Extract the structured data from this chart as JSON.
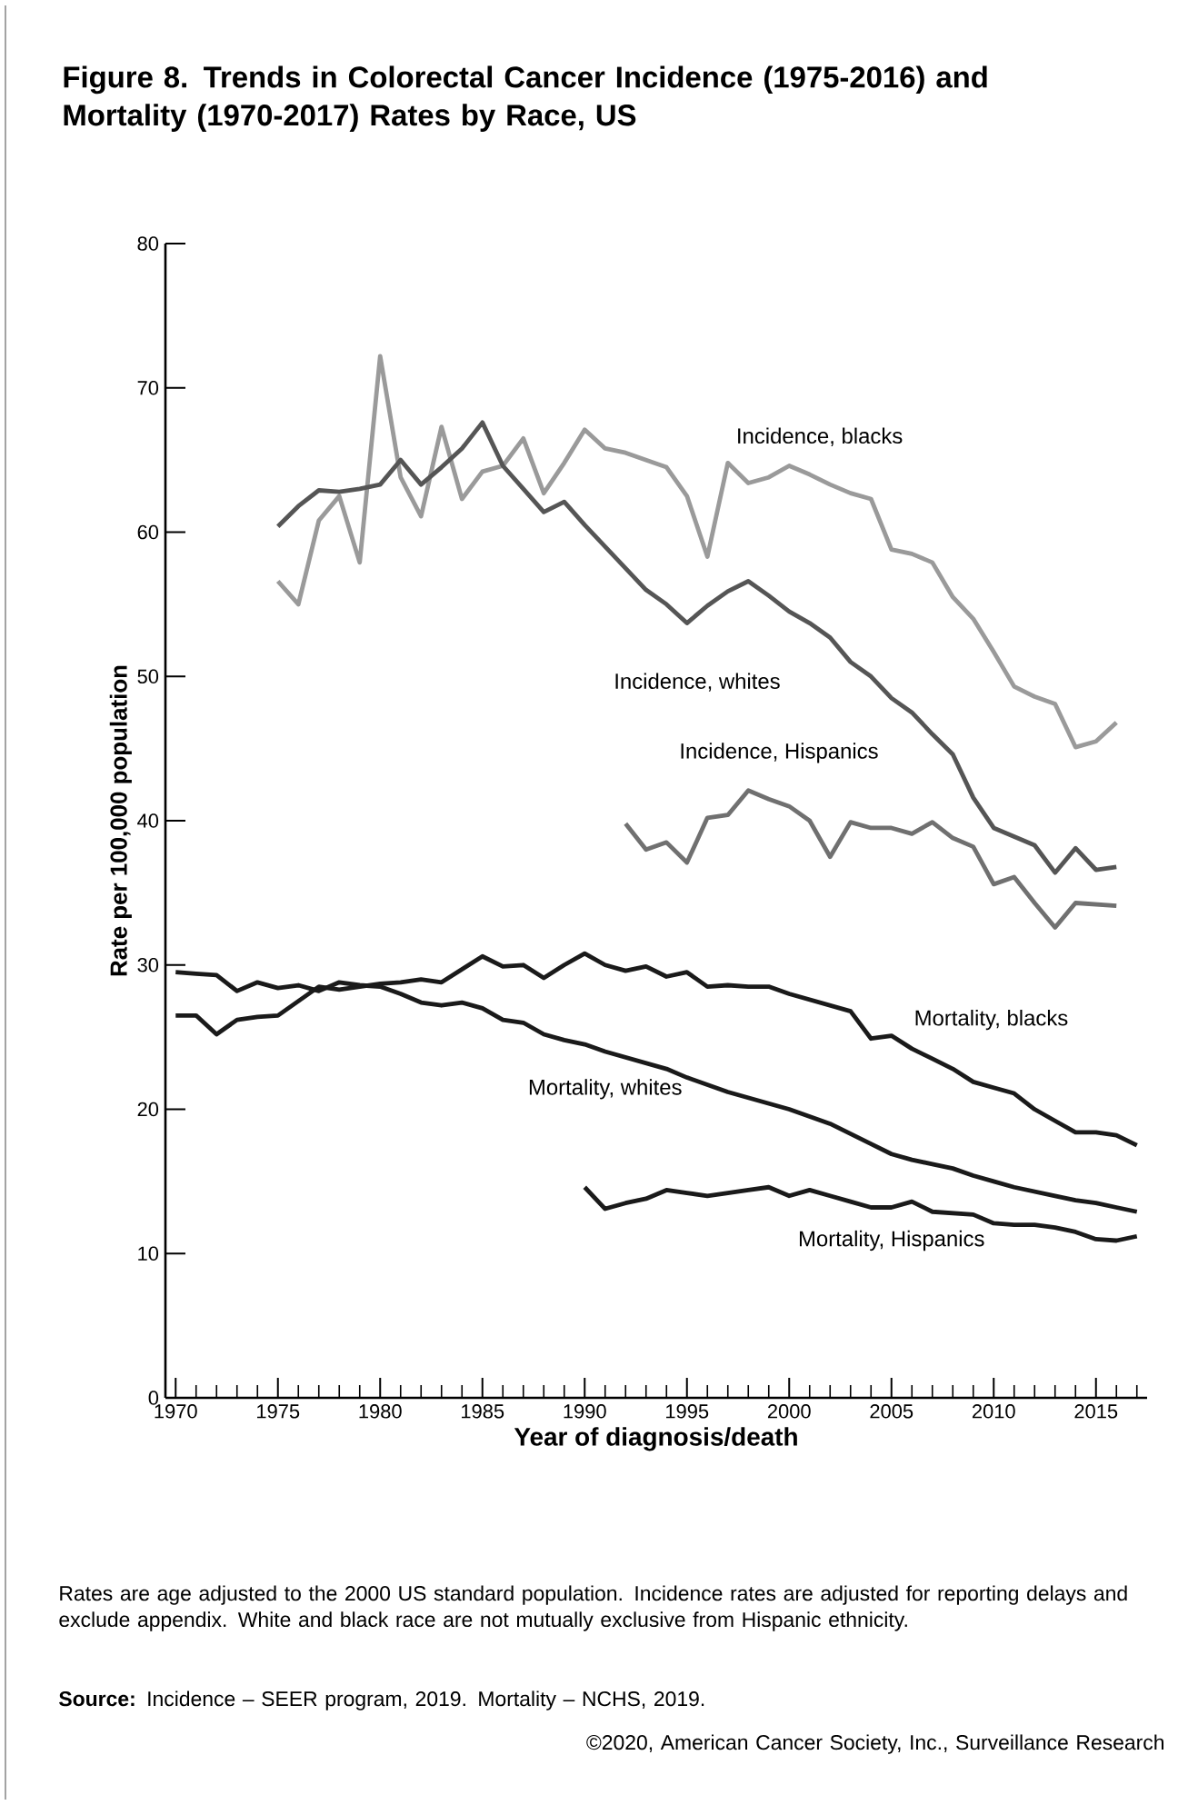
{
  "chart_data": {
    "type": "line",
    "title": "Figure 8. Trends in Colorectal Cancer Incidence (1975-2016) and Mortality (1970-2017) Rates by Race, US",
    "xlabel": "Year of diagnosis/death",
    "ylabel": "Rate per 100,000 population",
    "xlim": [
      1969.5,
      2017.5
    ],
    "ylim": [
      0,
      80
    ],
    "yticks": [
      0,
      10,
      20,
      30,
      40,
      50,
      60,
      70,
      80
    ],
    "xticks": [
      1970,
      {
        "value": 1971,
        "label": null
      },
      {
        "value": 1972,
        "label": null
      },
      {
        "value": 1973,
        "label": null
      },
      {
        "value": 1974,
        "label": null
      },
      1975,
      {
        "value": 1976,
        "label": null
      },
      {
        "value": 1977,
        "label": null
      },
      {
        "value": 1978,
        "label": null
      },
      {
        "value": 1979,
        "label": null
      },
      1980,
      {
        "value": 1981,
        "label": null
      },
      {
        "value": 1982,
        "label": null
      },
      {
        "value": 1983,
        "label": null
      },
      {
        "value": 1984,
        "label": null
      },
      1985,
      {
        "value": 1986,
        "label": null
      },
      {
        "value": 1987,
        "label": null
      },
      {
        "value": 1988,
        "label": null
      },
      {
        "value": 1989,
        "label": null
      },
      1990,
      {
        "value": 1991,
        "label": null
      },
      {
        "value": 1992,
        "label": null
      },
      {
        "value": 1993,
        "label": null
      },
      {
        "value": 1994,
        "label": null
      },
      1995,
      {
        "value": 1996,
        "label": null
      },
      {
        "value": 1997,
        "label": null
      },
      {
        "value": 1998,
        "label": null
      },
      {
        "value": 1999,
        "label": null
      },
      2000,
      {
        "value": 2001,
        "label": null
      },
      {
        "value": 2002,
        "label": null
      },
      {
        "value": 2003,
        "label": null
      },
      {
        "value": 2004,
        "label": null
      },
      2005,
      {
        "value": 2006,
        "label": null
      },
      {
        "value": 2007,
        "label": null
      },
      {
        "value": 2008,
        "label": null
      },
      {
        "value": 2009,
        "label": null
      },
      2010,
      {
        "value": 2011,
        "label": null
      },
      {
        "value": 2012,
        "label": null
      },
      {
        "value": 2013,
        "label": null
      },
      {
        "value": 2014,
        "label": null
      },
      2015,
      {
        "value": 2016,
        "label": null
      },
      {
        "value": 2017,
        "label": null
      }
    ],
    "series": [
      {
        "name": "Incidence, blacks",
        "color": "#9a9a9a",
        "x": [
          1975,
          1976,
          1977,
          1978,
          1979,
          1980,
          1981,
          1982,
          1983,
          1984,
          1985,
          1986,
          1987,
          1988,
          1989,
          1990,
          1991,
          1992,
          1993,
          1994,
          1995,
          1996,
          1997,
          1998,
          1999,
          2000,
          2001,
          2002,
          2003,
          2004,
          2005,
          2006,
          2007,
          2008,
          2009,
          2010,
          2011,
          2012,
          2013,
          2014,
          2015,
          2016
        ],
        "values": [
          56.6,
          55.0,
          60.8,
          62.5,
          57.9,
          72.2,
          63.8,
          61.1,
          67.3,
          62.3,
          64.2,
          64.6,
          66.5,
          62.7,
          64.8,
          67.1,
          65.8,
          65.5,
          65.0,
          64.5,
          62.5,
          58.3,
          64.8,
          63.4,
          63.8,
          64.6,
          64.0,
          63.3,
          62.7,
          62.3,
          58.8,
          58.5,
          57.9,
          55.5,
          54.0,
          51.7,
          49.3,
          48.6,
          48.1,
          45.1,
          45.5,
          46.8
        ]
      },
      {
        "name": "Incidence, whites",
        "color": "#555555",
        "x": [
          1975,
          1976,
          1977,
          1978,
          1979,
          1980,
          1981,
          1982,
          1983,
          1984,
          1985,
          1986,
          1987,
          1988,
          1989,
          1990,
          1991,
          1992,
          1993,
          1994,
          1995,
          1996,
          1997,
          1998,
          1999,
          2000,
          2001,
          2002,
          2003,
          2004,
          2005,
          2006,
          2007,
          2008,
          2009,
          2010,
          2011,
          2012,
          2013,
          2014,
          2015,
          2016
        ],
        "values": [
          60.4,
          61.8,
          62.9,
          62.8,
          63.0,
          63.3,
          65.0,
          63.3,
          64.5,
          65.8,
          67.6,
          64.6,
          63.0,
          61.4,
          62.1,
          60.5,
          59.0,
          57.5,
          56.0,
          55.0,
          53.7,
          54.9,
          55.9,
          56.6,
          55.6,
          54.5,
          53.7,
          52.7,
          51.0,
          50.0,
          48.5,
          47.5,
          46.0,
          44.6,
          41.6,
          39.5,
          38.9,
          38.3,
          36.4,
          38.1,
          36.6,
          36.8
        ]
      },
      {
        "name": "Incidence, Hispanics",
        "color": "#707070",
        "x": [
          1992,
          1993,
          1994,
          1995,
          1996,
          1997,
          1998,
          1999,
          2000,
          2001,
          2002,
          2003,
          2004,
          2005,
          2006,
          2007,
          2008,
          2009,
          2010,
          2011,
          2012,
          2013,
          2014,
          2015,
          2016
        ],
        "values": [
          39.8,
          38.0,
          38.5,
          37.1,
          40.2,
          40.4,
          42.1,
          41.5,
          41.0,
          40.0,
          37.5,
          39.9,
          39.5,
          39.5,
          39.1,
          39.9,
          38.8,
          38.2,
          35.6,
          36.1,
          34.3,
          32.6,
          34.3,
          34.2,
          34.1
        ]
      },
      {
        "name": "Mortality, blacks",
        "color": "#1a1a1a",
        "x": [
          1970,
          1971,
          1972,
          1973,
          1974,
          1975,
          1976,
          1977,
          1978,
          1979,
          1980,
          1981,
          1982,
          1983,
          1984,
          1985,
          1986,
          1987,
          1988,
          1989,
          1990,
          1991,
          1992,
          1993,
          1994,
          1995,
          1996,
          1997,
          1998,
          1999,
          2000,
          2001,
          2002,
          2003,
          2004,
          2005,
          2006,
          2007,
          2008,
          2009,
          2010,
          2011,
          2012,
          2013,
          2014,
          2015,
          2016,
          2017
        ],
        "values": [
          26.5,
          26.5,
          25.2,
          26.2,
          26.4,
          26.5,
          27.5,
          28.5,
          28.3,
          28.5,
          28.7,
          28.8,
          29.0,
          28.8,
          29.7,
          30.6,
          29.9,
          30.0,
          29.1,
          30.0,
          30.8,
          30.0,
          29.6,
          29.9,
          29.2,
          29.5,
          28.5,
          28.6,
          28.5,
          28.5,
          28.0,
          27.6,
          27.2,
          26.8,
          24.9,
          25.1,
          24.2,
          23.5,
          22.8,
          21.9,
          21.5,
          21.1,
          20.0,
          19.2,
          18.4,
          18.4,
          18.2,
          17.5
        ]
      },
      {
        "name": "Mortality, whites",
        "color": "#1a1a1a",
        "x": [
          1970,
          1971,
          1972,
          1973,
          1974,
          1975,
          1976,
          1977,
          1978,
          1979,
          1980,
          1981,
          1982,
          1983,
          1984,
          1985,
          1986,
          1987,
          1988,
          1989,
          1990,
          1991,
          1992,
          1993,
          1994,
          1995,
          1996,
          1997,
          1998,
          1999,
          2000,
          2001,
          2002,
          2003,
          2004,
          2005,
          2006,
          2007,
          2008,
          2009,
          2010,
          2011,
          2012,
          2013,
          2014,
          2015,
          2016,
          2017
        ],
        "values": [
          29.5,
          29.4,
          29.3,
          28.2,
          28.8,
          28.4,
          28.6,
          28.2,
          28.8,
          28.6,
          28.5,
          28.0,
          27.4,
          27.2,
          27.4,
          27.0,
          26.2,
          26.0,
          25.2,
          24.8,
          24.5,
          24.0,
          23.6,
          23.2,
          22.8,
          22.2,
          21.7,
          21.2,
          20.8,
          20.4,
          20.0,
          19.5,
          19.0,
          18.3,
          17.6,
          16.9,
          16.5,
          16.2,
          15.9,
          15.4,
          15.0,
          14.6,
          14.3,
          14.0,
          13.7,
          13.5,
          13.2,
          12.9
        ]
      },
      {
        "name": "Mortality, Hispanics",
        "color": "#1a1a1a",
        "x": [
          1990,
          1991,
          1992,
          1993,
          1994,
          1995,
          1996,
          1997,
          1998,
          1999,
          2000,
          2001,
          2002,
          2003,
          2004,
          2005,
          2006,
          2007,
          2008,
          2009,
          2010,
          2011,
          2012,
          2013,
          2014,
          2015,
          2016,
          2017
        ],
        "values": [
          14.6,
          13.1,
          13.5,
          13.8,
          14.4,
          14.2,
          14.0,
          14.2,
          14.4,
          14.6,
          14.0,
          14.4,
          14.0,
          13.6,
          13.2,
          13.2,
          13.6,
          12.9,
          12.8,
          12.7,
          12.1,
          12.0,
          12.0,
          11.8,
          11.5,
          11.0,
          10.9,
          11.2
        ]
      }
    ],
    "annotations": [
      "Rates are age adjusted to the 2000 US standard population. Incidence rates are adjusted for reporting delays and exclude appendix. White and black race are not mutually exclusive from Hispanic ethnicity.",
      "**Source:** Incidence – SEER program, 2019. Mortality – NCHS, 2019.",
      "©2020, American Cancer Society, Inc., Surveillance Research"
    ]
  }
}
